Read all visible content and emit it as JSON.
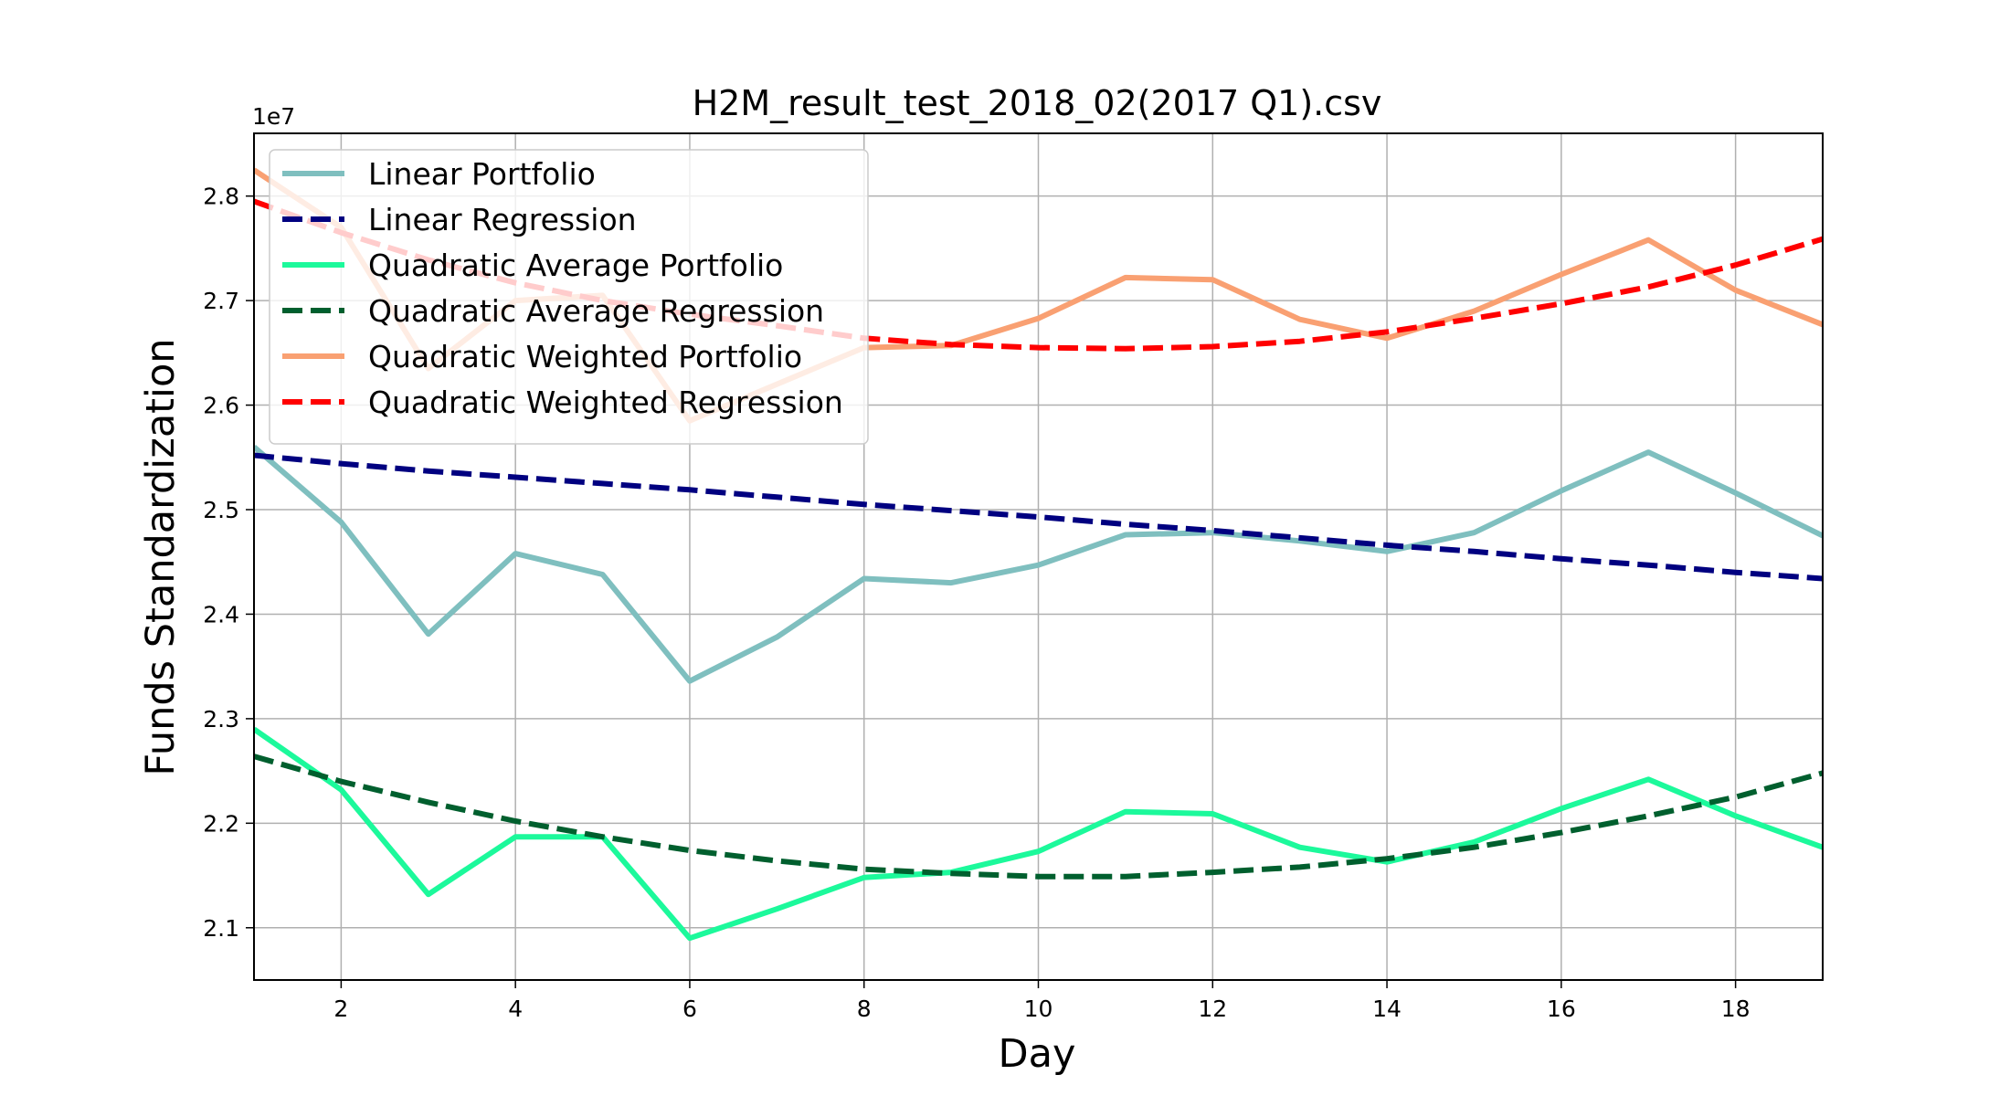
{
  "chart_data": {
    "type": "line",
    "title": "H2M_result_test_2018_02(2017 Q1).csv",
    "xlabel": "Day",
    "ylabel": "Funds Standardization",
    "y_offset_label": "1e7",
    "xlim": [
      1,
      19
    ],
    "ylim": [
      2.05,
      2.86
    ],
    "y_scale_factor": 10000000,
    "x_ticks": [
      2,
      4,
      6,
      8,
      10,
      12,
      14,
      16,
      18
    ],
    "y_ticks": [
      2.1,
      2.2,
      2.3,
      2.4,
      2.5,
      2.6,
      2.7,
      2.8
    ],
    "y_tick_labels": [
      "2.1",
      "2.2",
      "2.3",
      "2.4",
      "2.5",
      "2.6",
      "2.7",
      "2.8"
    ],
    "grid": true,
    "legend_position": "upper-left",
    "x": [
      1,
      2,
      3,
      4,
      5,
      6,
      7,
      8,
      9,
      10,
      11,
      12,
      13,
      14,
      15,
      16,
      17,
      18,
      19
    ],
    "series": [
      {
        "name": "Quadratic Weighted Portfolio",
        "color": "#f9a072",
        "style": "solid",
        "values": [
          2.825,
          2.77,
          2.635,
          2.7,
          2.705,
          2.585,
          2.62,
          2.655,
          2.657,
          2.683,
          2.722,
          2.72,
          2.682,
          2.664,
          2.69,
          2.725,
          2.758,
          2.71,
          2.677
        ]
      },
      {
        "name": "Quadratic Weighted Regression",
        "color": "#ff0000",
        "style": "dashed",
        "values": [
          2.795,
          2.765,
          2.739,
          2.717,
          2.7,
          2.687,
          2.676,
          2.664,
          2.658,
          2.655,
          2.654,
          2.656,
          2.661,
          2.67,
          2.683,
          2.697,
          2.713,
          2.734,
          2.759
        ]
      },
      {
        "name": "Linear Portfolio",
        "color": "#7fbfbf",
        "style": "solid",
        "values": [
          2.56,
          2.488,
          2.381,
          2.458,
          2.438,
          2.336,
          2.378,
          2.434,
          2.43,
          2.447,
          2.476,
          2.478,
          2.47,
          2.46,
          2.478,
          2.518,
          2.555,
          2.516,
          2.475
        ]
      },
      {
        "name": "Linear Regression",
        "color": "#000080",
        "style": "dashed",
        "values": [
          2.552,
          2.544,
          2.537,
          2.531,
          2.525,
          2.519,
          2.512,
          2.505,
          2.499,
          2.493,
          2.486,
          2.48,
          2.473,
          2.466,
          2.46,
          2.453,
          2.447,
          2.44,
          2.434
        ]
      },
      {
        "name": "Quadratic Average Portfolio",
        "color": "#1cf99b",
        "style": "solid",
        "values": [
          2.29,
          2.232,
          2.132,
          2.187,
          2.187,
          2.09,
          2.118,
          2.148,
          2.153,
          2.173,
          2.211,
          2.209,
          2.177,
          2.163,
          2.182,
          2.214,
          2.242,
          2.207,
          2.177
        ]
      },
      {
        "name": "Quadratic Average Regression",
        "color": "#005f2e",
        "style": "dashed",
        "values": [
          2.264,
          2.24,
          2.22,
          2.202,
          2.187,
          2.174,
          2.164,
          2.156,
          2.152,
          2.149,
          2.149,
          2.153,
          2.158,
          2.166,
          2.177,
          2.191,
          2.207,
          2.225,
          2.248
        ]
      }
    ],
    "legend_order": [
      "Linear Portfolio",
      "Linear Regression",
      "Quadratic Average Portfolio",
      "Quadratic Average Regression",
      "Quadratic Weighted Portfolio",
      "Quadratic Weighted Regression"
    ]
  }
}
